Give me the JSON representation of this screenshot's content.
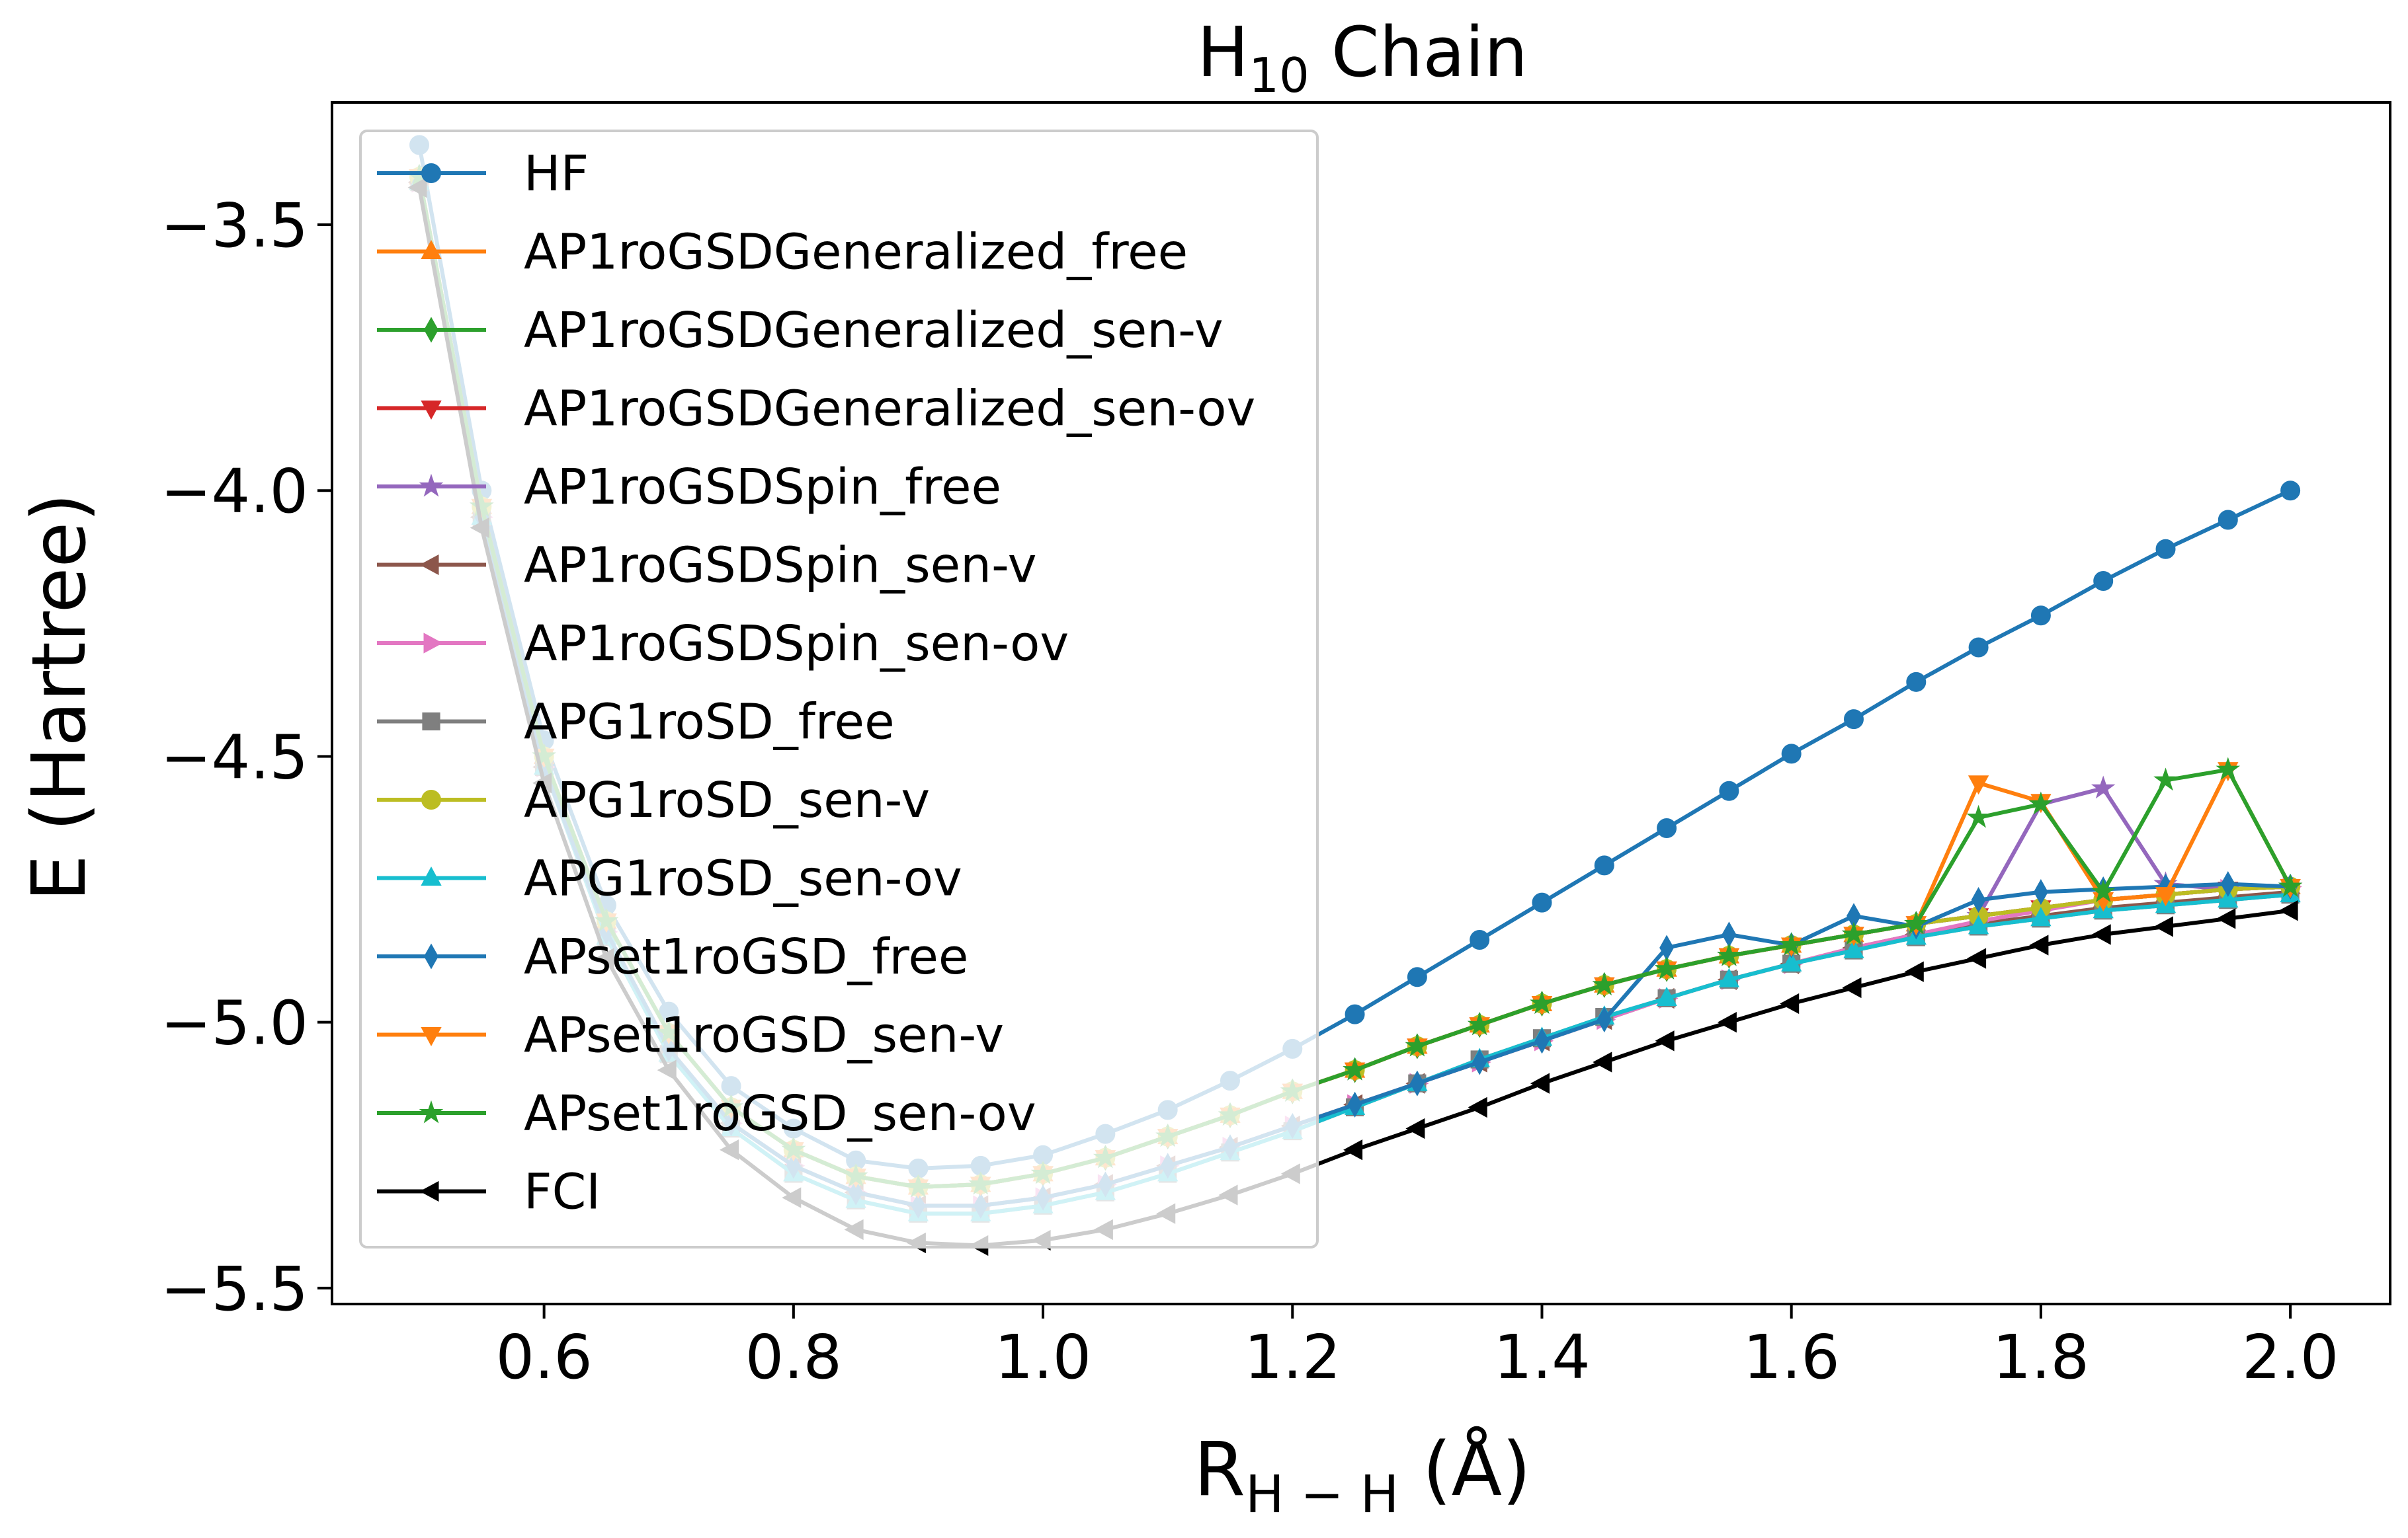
{
  "chart_data": {
    "type": "line",
    "title": "H",
    "title_sub": "10",
    "title_suffix": " Chain",
    "xlabel": "R",
    "xlabel_sub": "H − H",
    "xlabel_suffix": " (Å)",
    "ylabel": "E (Hartree)",
    "xlim": [
      0.43,
      2.08
    ],
    "ylim": [
      -5.53,
      -3.27
    ],
    "xticks": [
      "0.6",
      "0.8",
      "1.0",
      "1.2",
      "1.4",
      "1.6",
      "1.8",
      "2.0"
    ],
    "yticks": [
      "−3.5",
      "−4.0",
      "−4.5",
      "−5.0",
      "−5.5"
    ],
    "grid": false,
    "legend_position": "upper-left",
    "x": [
      0.5,
      0.55,
      0.6,
      0.65,
      0.7,
      0.75,
      0.8,
      0.85,
      0.9,
      0.95,
      1.0,
      1.05,
      1.1,
      1.15,
      1.2,
      1.25,
      1.3,
      1.35,
      1.4,
      1.45,
      1.5,
      1.55,
      1.6,
      1.65,
      1.7,
      1.75,
      1.8,
      1.85,
      1.9,
      1.95,
      2.0
    ],
    "series": [
      {
        "name": "HF",
        "color": "#1f77b4",
        "marker": "o",
        "values": [
          -3.35,
          -4.0,
          -4.47,
          -4.78,
          -4.98,
          -5.12,
          -5.2,
          -5.26,
          -5.275,
          -5.27,
          -5.25,
          -5.21,
          -5.165,
          -5.11,
          -5.05,
          -4.985,
          -4.915,
          -4.845,
          -4.775,
          -4.705,
          -4.635,
          -4.565,
          -4.495,
          -4.43,
          -4.36,
          -4.295,
          -4.235,
          -4.17,
          -4.11,
          -4.055,
          -4.0
        ]
      },
      {
        "name": "AP1roGSDGeneralized_free",
        "color": "#ff7f0e",
        "marker": "^",
        "values": [
          -3.41,
          -4.03,
          -4.5,
          -4.81,
          -5.02,
          -5.16,
          -5.24,
          -5.29,
          -5.31,
          -5.305,
          -5.285,
          -5.255,
          -5.215,
          -5.175,
          -5.13,
          -5.09,
          -5.045,
          -5.005,
          -4.965,
          -4.93,
          -4.9,
          -4.875,
          -4.855,
          -4.835,
          -4.815,
          -4.8,
          -4.785,
          -4.77,
          -4.76,
          -4.75,
          -4.745
        ]
      },
      {
        "name": "AP1roGSDGeneralized_sen-v",
        "color": "#2ca02c",
        "marker": "d",
        "values": [
          -3.41,
          -4.03,
          -4.5,
          -4.81,
          -5.02,
          -5.16,
          -5.24,
          -5.29,
          -5.31,
          -5.305,
          -5.285,
          -5.255,
          -5.215,
          -5.175,
          -5.13,
          -5.09,
          -5.045,
          -5.005,
          -4.965,
          -4.93,
          -4.9,
          -4.875,
          -4.855,
          -4.835,
          -4.815,
          -4.8,
          -4.785,
          -4.77,
          -4.76,
          -4.75,
          -4.745
        ]
      },
      {
        "name": "AP1roGSDGeneralized_sen-ov",
        "color": "#d62728",
        "marker": "v",
        "values": [
          -3.41,
          -4.03,
          -4.5,
          -4.81,
          -5.02,
          -5.16,
          -5.24,
          -5.29,
          -5.31,
          -5.305,
          -5.285,
          -5.255,
          -5.215,
          -5.175,
          -5.13,
          -5.09,
          -5.045,
          -5.005,
          -4.965,
          -4.93,
          -4.9,
          -4.875,
          -4.855,
          -4.835,
          -4.815,
          -4.8,
          -4.785,
          -4.77,
          -4.76,
          -4.75,
          -4.745
        ]
      },
      {
        "name": "AP1roGSDSpin_free",
        "color": "#9467bd",
        "marker": "*",
        "values": [
          -3.41,
          -4.03,
          -4.5,
          -4.81,
          -5.02,
          -5.16,
          -5.24,
          -5.29,
          -5.31,
          -5.305,
          -5.285,
          -5.255,
          -5.215,
          -5.175,
          -5.13,
          -5.09,
          -5.045,
          -5.005,
          -4.965,
          -4.93,
          -4.9,
          -4.875,
          -4.855,
          -4.835,
          -4.815,
          -4.8,
          -4.59,
          -4.56,
          -4.74,
          -4.75,
          -4.745
        ]
      },
      {
        "name": "AP1roGSDSpin_sen-v",
        "color": "#8c564b",
        "marker": "<",
        "values": [
          -3.42,
          -4.05,
          -4.52,
          -4.83,
          -5.05,
          -5.19,
          -5.27,
          -5.32,
          -5.345,
          -5.345,
          -5.33,
          -5.305,
          -5.27,
          -5.235,
          -5.195,
          -5.155,
          -5.115,
          -5.075,
          -5.035,
          -4.995,
          -4.955,
          -4.92,
          -4.89,
          -4.86,
          -4.835,
          -4.815,
          -4.8,
          -4.785,
          -4.775,
          -4.765,
          -4.755
        ]
      },
      {
        "name": "AP1roGSDSpin_sen-ov",
        "color": "#e377c2",
        "marker": ">",
        "values": [
          -3.42,
          -4.05,
          -4.52,
          -4.83,
          -5.05,
          -5.19,
          -5.27,
          -5.32,
          -5.345,
          -5.345,
          -5.33,
          -5.305,
          -5.27,
          -5.235,
          -5.195,
          -5.155,
          -5.115,
          -5.075,
          -5.035,
          -4.995,
          -4.955,
          -4.92,
          -4.89,
          -4.86,
          -4.835,
          -4.81,
          -4.79,
          -4.77,
          -4.76,
          -4.75,
          -4.745
        ]
      },
      {
        "name": "APG1roSD_free",
        "color": "#7f7f7f",
        "marker": "s",
        "values": [
          -3.42,
          -4.05,
          -4.52,
          -4.84,
          -5.06,
          -5.2,
          -5.285,
          -5.335,
          -5.36,
          -5.36,
          -5.345,
          -5.32,
          -5.285,
          -5.245,
          -5.205,
          -5.16,
          -5.115,
          -5.07,
          -5.03,
          -4.99,
          -4.955,
          -4.92,
          -4.89,
          -4.865,
          -4.84,
          -4.82,
          -4.805,
          -4.79,
          -4.78,
          -4.77,
          -4.76
        ]
      },
      {
        "name": "APG1roSD_sen-v",
        "color": "#bcbd22",
        "marker": "o",
        "values": [
          -3.41,
          -4.03,
          -4.5,
          -4.81,
          -5.02,
          -5.16,
          -5.24,
          -5.29,
          -5.31,
          -5.305,
          -5.285,
          -5.255,
          -5.215,
          -5.175,
          -5.13,
          -5.09,
          -5.045,
          -5.005,
          -4.965,
          -4.93,
          -4.9,
          -4.875,
          -4.855,
          -4.835,
          -4.815,
          -4.8,
          -4.785,
          -4.77,
          -4.76,
          -4.75,
          -4.745
        ]
      },
      {
        "name": "APG1roSD_sen-ov",
        "color": "#17becf",
        "marker": "^",
        "values": [
          -3.42,
          -4.05,
          -4.52,
          -4.84,
          -5.06,
          -5.2,
          -5.285,
          -5.335,
          -5.36,
          -5.36,
          -5.345,
          -5.32,
          -5.285,
          -5.245,
          -5.205,
          -5.16,
          -5.115,
          -5.07,
          -5.03,
          -4.99,
          -4.955,
          -4.92,
          -4.89,
          -4.865,
          -4.84,
          -4.82,
          -4.805,
          -4.79,
          -4.78,
          -4.77,
          -4.76
        ]
      },
      {
        "name": "APset1roGSD_free",
        "color": "#1f77b4",
        "marker": "d",
        "values": [
          -3.42,
          -4.05,
          -4.52,
          -4.83,
          -5.05,
          -5.19,
          -5.27,
          -5.32,
          -5.345,
          -5.345,
          -5.33,
          -5.305,
          -5.27,
          -5.235,
          -5.195,
          -5.155,
          -5.115,
          -5.075,
          -5.035,
          -4.995,
          -4.86,
          -4.835,
          -4.855,
          -4.8,
          -4.82,
          -4.77,
          -4.755,
          -4.75,
          -4.745,
          -4.74,
          -4.745
        ]
      },
      {
        "name": "APset1roGSD_sen-v",
        "color": "#ff7f0e",
        "marker": "v",
        "values": [
          -3.41,
          -4.03,
          -4.5,
          -4.81,
          -5.02,
          -5.16,
          -5.24,
          -5.29,
          -5.31,
          -5.305,
          -5.285,
          -5.255,
          -5.215,
          -5.175,
          -5.13,
          -5.09,
          -5.045,
          -5.005,
          -4.965,
          -4.93,
          -4.9,
          -4.875,
          -4.855,
          -4.835,
          -4.815,
          -4.55,
          -4.585,
          -4.77,
          -4.76,
          -4.525,
          -4.745
        ]
      },
      {
        "name": "APset1roGSD_sen-ov",
        "color": "#2ca02c",
        "marker": "*",
        "values": [
          -3.41,
          -4.03,
          -4.5,
          -4.81,
          -5.02,
          -5.16,
          -5.24,
          -5.29,
          -5.31,
          -5.305,
          -5.285,
          -5.255,
          -5.215,
          -5.175,
          -5.13,
          -5.09,
          -5.045,
          -5.005,
          -4.965,
          -4.93,
          -4.9,
          -4.875,
          -4.855,
          -4.835,
          -4.815,
          -4.615,
          -4.59,
          -4.755,
          -4.545,
          -4.525,
          -4.745
        ]
      },
      {
        "name": "FCI",
        "color": "#000000",
        "marker": "<",
        "values": [
          -3.43,
          -4.07,
          -4.55,
          -4.88,
          -5.09,
          -5.24,
          -5.33,
          -5.39,
          -5.415,
          -5.42,
          -5.41,
          -5.39,
          -5.36,
          -5.325,
          -5.285,
          -5.24,
          -5.2,
          -5.16,
          -5.115,
          -5.075,
          -5.035,
          -5.0,
          -4.965,
          -4.935,
          -4.905,
          -4.88,
          -4.855,
          -4.835,
          -4.82,
          -4.805,
          -4.79
        ]
      }
    ]
  }
}
